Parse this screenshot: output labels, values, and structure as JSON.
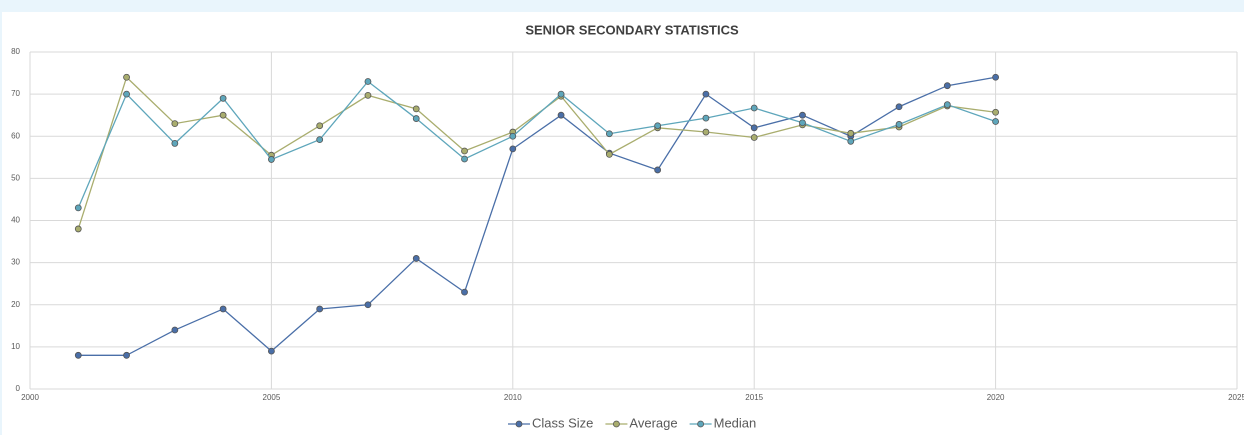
{
  "chart_data": {
    "type": "line",
    "title": "SENIOR SECONDARY STATISTICS",
    "x": [
      2001,
      2002,
      2003,
      2004,
      2005,
      2006,
      2007,
      2008,
      2009,
      2010,
      2011,
      2012,
      2013,
      2014,
      2015,
      2016,
      2017,
      2018,
      2019,
      2020
    ],
    "series": [
      {
        "name": "Class Size",
        "color": "#4a6fa8",
        "values": [
          8,
          8,
          14,
          19,
          9,
          19,
          20,
          31,
          23,
          57,
          65,
          56,
          52,
          70,
          62,
          65,
          60,
          67,
          72,
          74
        ]
      },
      {
        "name": "Average",
        "color": "#a9ad6e",
        "values": [
          38,
          74,
          63,
          65,
          55.5,
          62.5,
          69.7,
          66.5,
          56.5,
          61,
          69.5,
          55.7,
          62,
          61,
          59.7,
          62.7,
          60.7,
          62.2,
          67.2,
          65.7
        ]
      },
      {
        "name": "Median",
        "color": "#5ea6bb",
        "values": [
          43,
          70,
          58.3,
          69,
          54.5,
          59.2,
          73,
          64.2,
          54.6,
          60,
          70,
          60.6,
          62.5,
          64.3,
          66.7,
          63.2,
          58.8,
          62.8,
          67.5,
          63.5
        ]
      }
    ],
    "xlim": [
      2000,
      2025
    ],
    "xticks": [
      2000,
      2005,
      2010,
      2015,
      2020,
      2025
    ],
    "ylim": [
      0,
      80
    ],
    "yticks": [
      0,
      10,
      20,
      30,
      40,
      50,
      60,
      70,
      80
    ],
    "grid": true,
    "legend": "bottom"
  }
}
